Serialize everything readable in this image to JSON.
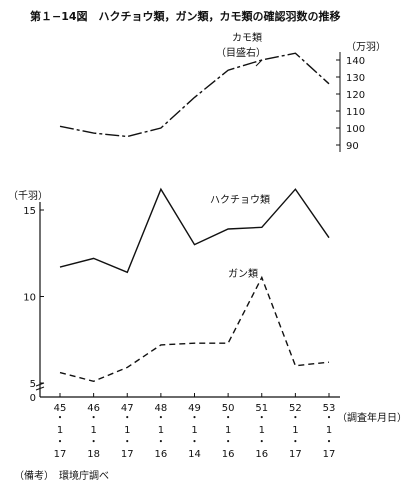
{
  "title": "第１−14図　ハクチョウ類，ガン類，カモ類の確認羽数の推移",
  "note": "（備考）　環境庁調べ",
  "chart_data": [
    {
      "type": "line",
      "series": [
        {
          "name": "カモ類",
          "sublabel": "（目盛右）",
          "values": [
            101,
            97,
            95,
            100,
            118,
            134,
            140,
            144,
            126
          ],
          "style": "solid-dashdot"
        }
      ],
      "ylabel": "（万羽）",
      "yticks": [
        "140",
        "130",
        "120",
        "110",
        "100",
        "90"
      ],
      "ylim": [
        88,
        148
      ]
    },
    {
      "type": "line",
      "x": [
        {
          "year": "45",
          "m": "1",
          "d": "17"
        },
        {
          "year": "46",
          "m": "1",
          "d": "18"
        },
        {
          "year": "47",
          "m": "1",
          "d": "17"
        },
        {
          "year": "48",
          "m": "1",
          "d": "16"
        },
        {
          "year": "49",
          "m": "1",
          "d": "14"
        },
        {
          "year": "50",
          "m": "1",
          "d": "16"
        },
        {
          "year": "51",
          "m": "1",
          "d": "16"
        },
        {
          "year": "52",
          "m": "1",
          "d": "17"
        },
        {
          "year": "53",
          "m": "1",
          "d": "17"
        }
      ],
      "xlabel": "（調査年月日）",
      "ylabel": "（千羽）",
      "yticks": [
        "15",
        "10",
        "5",
        "0"
      ],
      "ylim": [
        0,
        16.5
      ],
      "series": [
        {
          "name": "ハクチョウ類",
          "values": [
            11.7,
            12.2,
            11.4,
            16.2,
            13.0,
            13.9,
            14.0,
            16.2,
            13.4
          ],
          "style": "solid"
        },
        {
          "name": "ガン類",
          "values": [
            5.6,
            5.1,
            5.9,
            7.2,
            7.3,
            7.3,
            11.1,
            6.0,
            6.2
          ],
          "style": "dashed"
        }
      ]
    }
  ]
}
